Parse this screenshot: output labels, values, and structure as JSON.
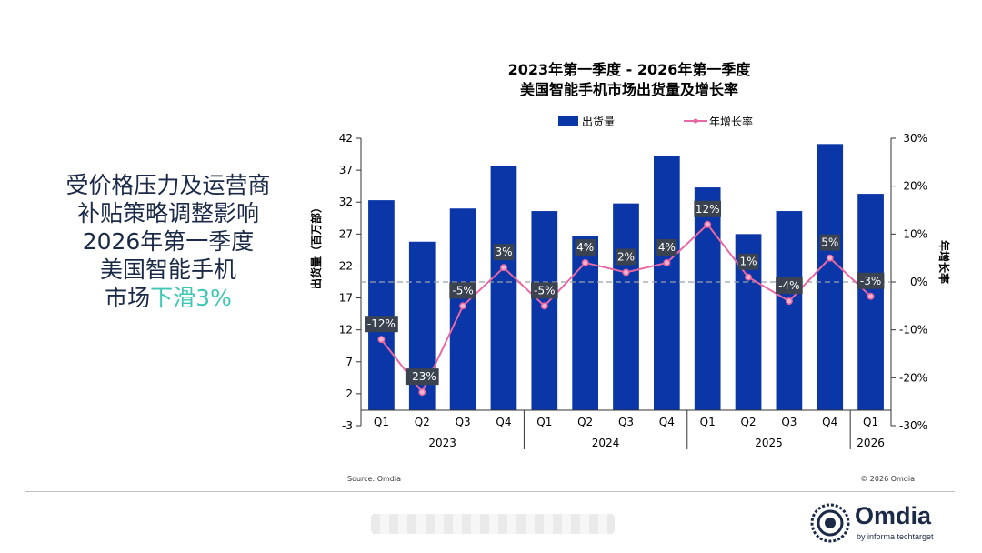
{
  "headline": {
    "line1": "受价格压力及运营商",
    "line2": "补贴策略调整影响",
    "line3": "2026年第一季度",
    "line4": "美国智能手机",
    "line5_prefix": "市场",
    "line5_accent": "下滑3%"
  },
  "chart_data": {
    "type": "bar",
    "title": "2023年第一季度 - 2026年第一季度",
    "subtitle": "美国智能手机市场出货量及增长率",
    "ylabel": "出货量（百万部）",
    "y2label": "年增长率",
    "ylim": [
      -3,
      42
    ],
    "y_ticks": [
      42,
      37,
      32,
      27,
      22,
      17,
      12,
      7,
      2,
      -3
    ],
    "y2lim": [
      -30,
      30
    ],
    "y2_ticks": [
      "30%",
      "20%",
      "10%",
      "0%",
      "-10%",
      "-20%",
      "-30%"
    ],
    "y2_tick_values": [
      30,
      20,
      10,
      0,
      -10,
      -20,
      -30
    ],
    "categories": [
      "Q1",
      "Q2",
      "Q3",
      "Q4",
      "Q1",
      "Q2",
      "Q3",
      "Q4",
      "Q1",
      "Q2",
      "Q3",
      "Q4",
      "Q1"
    ],
    "year_groups": [
      {
        "label": "2023",
        "count": 4
      },
      {
        "label": "2024",
        "count": 4
      },
      {
        "label": "2025",
        "count": 4
      },
      {
        "label": "2026",
        "count": 1
      }
    ],
    "legend_position": "top",
    "series": [
      {
        "name": "出货量",
        "kind": "bar",
        "color": "#0a36a8",
        "values": [
          32.3,
          25.8,
          31.0,
          37.6,
          30.6,
          26.7,
          31.8,
          39.2,
          34.3,
          27.0,
          30.6,
          41.1,
          33.3
        ]
      },
      {
        "name": "年增长率",
        "kind": "line",
        "color": "#e868a2",
        "values": [
          -12,
          -23,
          -5,
          3,
          -5,
          4,
          2,
          4,
          12,
          1,
          -4,
          5,
          -3
        ],
        "labels": [
          "-12%",
          "-23%",
          "-5%",
          "3%",
          "-5%",
          "4%",
          "2%",
          "4%",
          "12%",
          "1%",
          "-4%",
          "5%",
          "-3%"
        ]
      }
    ],
    "zero_line": "dashed",
    "source": "Source: Omdia",
    "copyright": "© 2026 Omdia"
  },
  "logo": {
    "name": "Omdia",
    "tagline": "by informa techtarget"
  },
  "colors": {
    "bar": "#0a36a8",
    "line": "#e868a2",
    "label_bg": "#3b4250",
    "accent": "#3ec7b5",
    "text": "#1b2a47"
  }
}
